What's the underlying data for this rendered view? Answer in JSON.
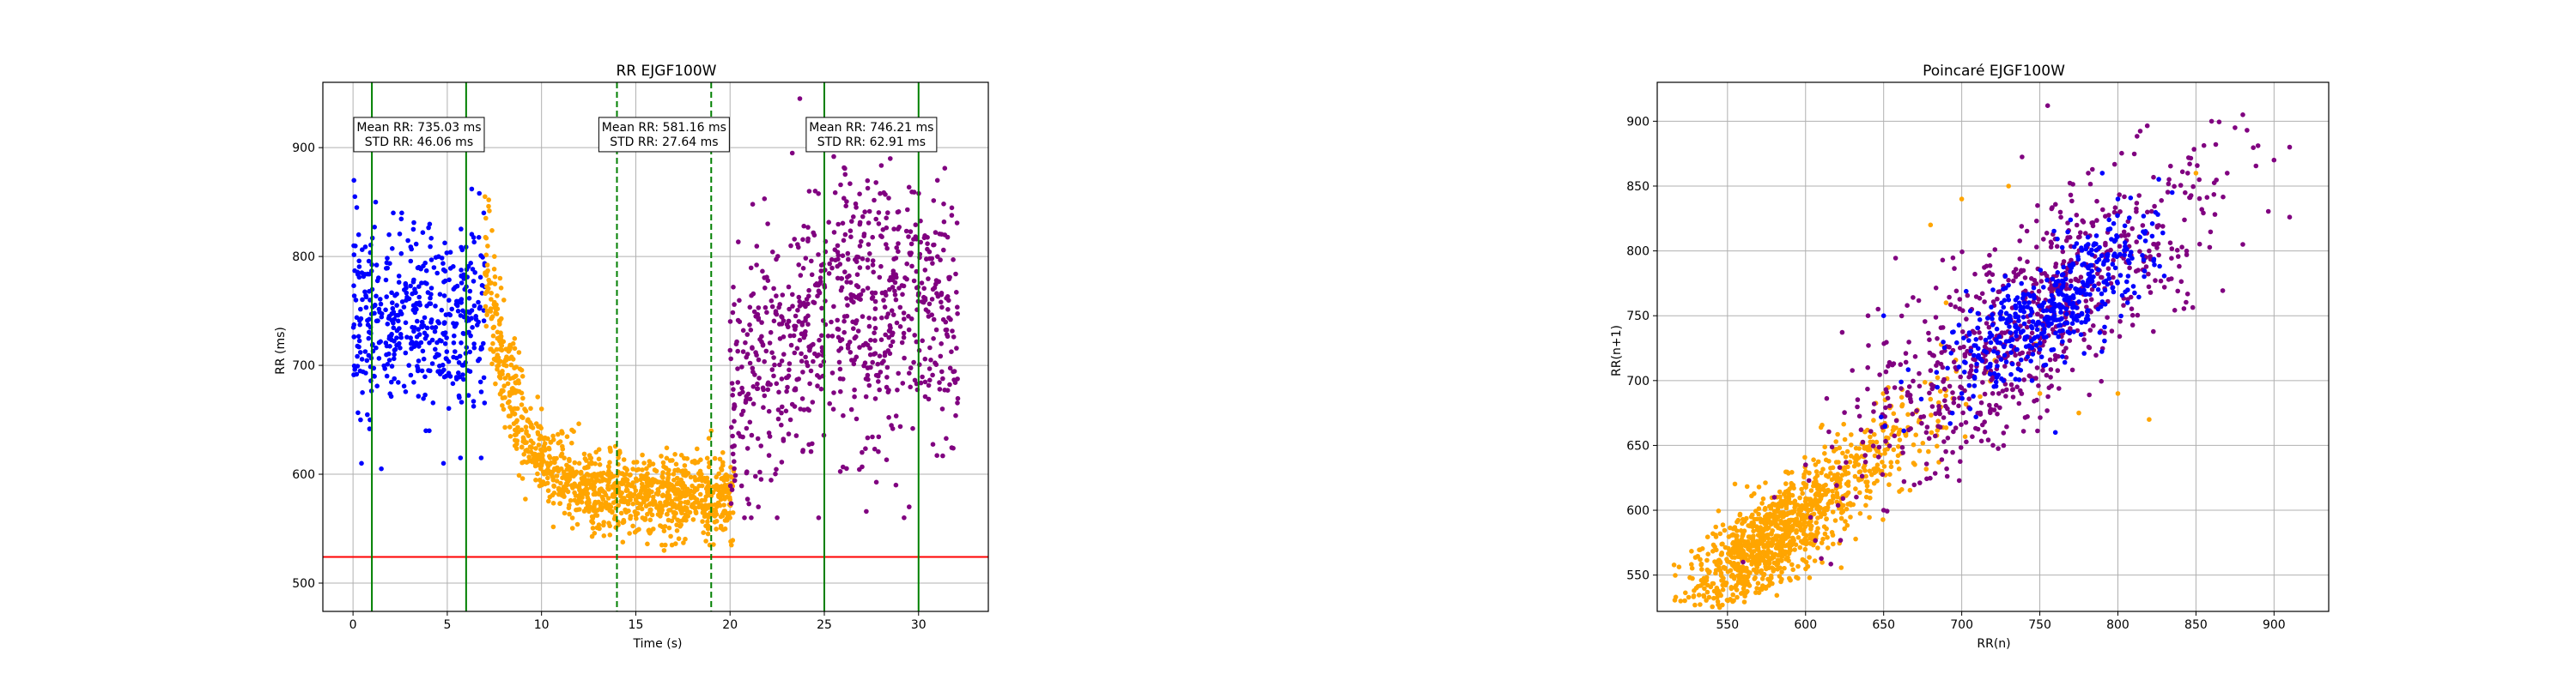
{
  "chart_data": [
    {
      "type": "scatter",
      "title": "RR EJGF100W",
      "xlabel": "Time (s)",
      "ylabel": "RR (ms)",
      "xlim": [
        -1.6,
        33.7
      ],
      "ylim": [
        474,
        960
      ],
      "xticks": [
        0,
        5,
        10,
        15,
        20,
        25,
        30
      ],
      "yticks": [
        500,
        600,
        700,
        800,
        900
      ],
      "grid": true,
      "threshold_line": {
        "y": 524,
        "color": "#ff0000"
      },
      "vertical_lines": [
        {
          "x": 1.0,
          "style": "solid",
          "color": "#008000"
        },
        {
          "x": 6.0,
          "style": "solid",
          "color": "#008000"
        },
        {
          "x": 14.0,
          "style": "dashed",
          "color": "#008000"
        },
        {
          "x": 19.0,
          "style": "dashed",
          "color": "#008000"
        },
        {
          "x": 25.0,
          "style": "solid",
          "color": "#008000"
        },
        {
          "x": 30.0,
          "style": "solid",
          "color": "#008000"
        }
      ],
      "annotations": [
        {
          "x": 3.5,
          "y": 912,
          "lines": [
            "Mean RR: 735.03 ms",
            "STD RR: 46.06 ms"
          ]
        },
        {
          "x": 16.5,
          "y": 912,
          "lines": [
            "Mean RR: 581.16 ms",
            "STD RR: 27.64 ms"
          ]
        },
        {
          "x": 27.5,
          "y": 912,
          "lines": [
            "Mean RR: 746.21 ms",
            "STD RR: 62.91 ms"
          ]
        }
      ],
      "series": [
        {
          "color": "#0000ff",
          "x_range": [
            0,
            7
          ],
          "mean": 740,
          "std": 46,
          "points": [
            [
              0.05,
              870
            ],
            [
              0.1,
              855
            ],
            [
              0.2,
              845
            ],
            [
              0.3,
              820
            ],
            [
              0.4,
              650
            ],
            [
              0.45,
              610
            ],
            [
              0.5,
              675
            ],
            [
              0.9,
              760
            ],
            [
              1.2,
              850
            ],
            [
              1.5,
              605
            ],
            [
              3.7,
              822
            ],
            [
              4.8,
              610
            ],
            [
              5.7,
              615
            ],
            [
              6.3,
              862
            ],
            [
              6.7,
              858
            ],
            [
              6.8,
              615
            ]
          ]
        },
        {
          "color": "#ffa500",
          "x_range": [
            6.8,
            20.2
          ],
          "points": [
            [
              7.0,
              855
            ],
            [
              7.2,
              852
            ],
            [
              7.5,
              800
            ],
            [
              7.8,
              780
            ],
            [
              8.0,
              760
            ],
            [
              8.5,
              720
            ],
            [
              9.0,
              690
            ],
            [
              10.0,
              660
            ],
            [
              11.0,
              630
            ],
            [
              12.0,
              610
            ],
            [
              13.0,
              600
            ],
            [
              14.0,
              590
            ],
            [
              15.0,
              585
            ],
            [
              16.0,
              575
            ],
            [
              17.0,
              565
            ],
            [
              18.0,
              570
            ],
            [
              19.0,
              580
            ],
            [
              20.0,
              585
            ],
            [
              16.5,
              530
            ],
            [
              19.0,
              640
            ]
          ]
        },
        {
          "color": "#800080",
          "x_range": [
            20.0,
            32.1
          ],
          "points": [
            [
              21.2,
              848
            ],
            [
              22.0,
              830
            ],
            [
              23.3,
              895
            ],
            [
              23.7,
              945
            ],
            [
              24.2,
              860
            ],
            [
              26.0,
              905
            ],
            [
              28.5,
              890
            ],
            [
              29.0,
              920
            ],
            [
              31.0,
              870
            ],
            [
              22.5,
              560
            ],
            [
              21.5,
              570
            ],
            [
              27.0,
              620
            ],
            [
              29.5,
              570
            ],
            [
              28.8,
              590
            ]
          ]
        }
      ]
    },
    {
      "type": "scatter",
      "title": "Poincaré EJGF100W",
      "xlabel": "RR(n)",
      "ylabel": "RR(n+1)",
      "xlim": [
        505,
        935
      ],
      "ylim": [
        522,
        930
      ],
      "xticks": [
        550,
        600,
        650,
        700,
        750,
        800,
        850,
        900
      ],
      "yticks": [
        550,
        600,
        650,
        700,
        750,
        800,
        850,
        900
      ],
      "grid": true,
      "series": [
        {
          "color": "#ffa500",
          "center": [
            600,
            600
          ],
          "points": [
            [
              520,
              530
            ],
            [
              530,
              540
            ],
            [
              545,
              525
            ],
            [
              680,
              820
            ],
            [
              700,
              840
            ],
            [
              730,
              850
            ],
            [
              750,
              690
            ],
            [
              775,
              675
            ],
            [
              800,
              690
            ],
            [
              820,
              670
            ],
            [
              690,
              760
            ],
            [
              760,
              770
            ],
            [
              850,
              860
            ]
          ]
        },
        {
          "color": "#800080",
          "center": [
            740,
            745
          ],
          "points": [
            [
              910,
              880
            ],
            [
              900,
              870
            ],
            [
              880,
              905
            ],
            [
              875,
              895
            ],
            [
              860,
              900
            ],
            [
              820,
              800
            ],
            [
              640,
              750
            ],
            [
              650,
              600
            ],
            [
              560,
              560
            ],
            [
              580,
              610
            ],
            [
              600,
              635
            ],
            [
              755,
              912
            ],
            [
              880,
              805
            ],
            [
              870,
              860
            ]
          ]
        },
        {
          "color": "#0000ff",
          "center": [
            755,
            762
          ],
          "points": [
            [
              650,
              750
            ],
            [
              700,
              690
            ],
            [
              720,
              770
            ],
            [
              790,
              860
            ],
            [
              800,
              840
            ],
            [
              760,
              660
            ],
            [
              745,
              700
            ]
          ]
        }
      ]
    }
  ]
}
